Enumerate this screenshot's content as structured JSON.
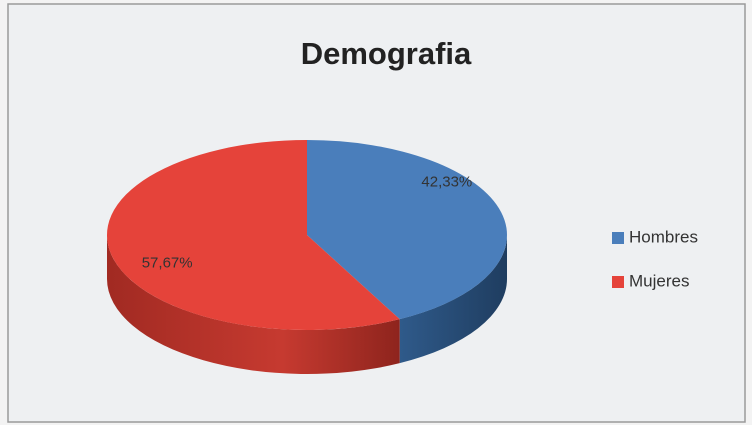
{
  "chart_data": {
    "type": "pie",
    "title": "Demografia",
    "categories": [
      "Hombres",
      "Mujeres"
    ],
    "values": [
      42.33,
      57.67
    ],
    "value_labels": [
      "42,33%",
      "57,67%"
    ],
    "colors": [
      "#4a7ebb",
      "#e5433a"
    ],
    "legend": "right"
  }
}
